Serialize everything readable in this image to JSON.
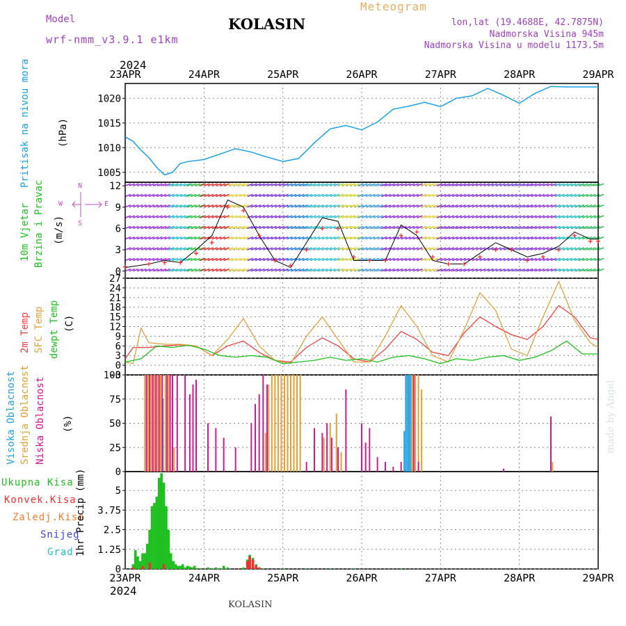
{
  "header": {
    "model_label": "Model",
    "model_name": "wrf-nmm_v3.9.1 e1km",
    "title": "KOLASIN",
    "meteogram": "Meteogram",
    "lonlat": "lon,lat (19.4688E, 42.7875N)",
    "elevation": "Nadmorska Visina 945m",
    "model_elevation": "Nadmorska Visina u modelu 1173.5m",
    "year_top": "2024",
    "year_bottom": "2024"
  },
  "footer": {
    "station": "KOLASIN",
    "credit": "made by Angel"
  },
  "colors": {
    "pressure": "#1aa0e8",
    "wind_speed": "#000000",
    "gust": "#ff2020",
    "t2m": "#f04040",
    "sfc": "#e0a040",
    "dew": "#20c020",
    "high_cloud": "#20a0e0",
    "mid_cloud": "#e0a030",
    "low_cloud": "#d01890",
    "total_precip": "#20c020",
    "conv_precip": "#f03030",
    "frozen": "#f08030",
    "snow": "#4040e0",
    "hail": "#20c0c0",
    "wind_label_1": "#20c020",
    "wind_dir_label": "#c050c0"
  },
  "x_ticks": [
    "23APR",
    "24APR",
    "25APR",
    "26APR",
    "27APR",
    "28APR",
    "29APR"
  ],
  "panels": {
    "pressure": {
      "label": "Pritisak na nivou mora",
      "unit": "(hPa)"
    },
    "wind": {
      "label1": "10m Vjetar",
      "label2": "Brzina i Pravac",
      "unit": "(m/s)",
      "compass_n": "N",
      "compass_s": "S",
      "compass_w": "W",
      "compass_e": "E"
    },
    "temp": {
      "label_t2": "2m Temp",
      "label_sfc": "SFC Temp",
      "label_dew": "dewpt Temp",
      "unit": "(C)"
    },
    "cloud": {
      "label_high": "Visoka Oblacnost",
      "label_mid": "Srednja Oblacnost",
      "label_low": "Niska Oblacnost",
      "unit": "(%)"
    },
    "precip": {
      "unit": "1hr Precip (mm)",
      "legend": [
        "Ukupna Kisa",
        "Konvek.Kisa",
        "Zaledj.Kisa",
        "Snijeg",
        "Grad"
      ]
    }
  },
  "chart_data": [
    {
      "type": "line",
      "name": "pressure",
      "ylim": [
        1003,
        1023
      ],
      "yticks": [
        1005,
        1010,
        1015,
        1020
      ],
      "xlim": [
        0,
        6
      ],
      "x": [
        0,
        0.1,
        0.2,
        0.3,
        0.4,
        0.5,
        0.6,
        0.7,
        0.8,
        1.0,
        1.2,
        1.4,
        1.6,
        1.8,
        2.0,
        2.2,
        2.4,
        2.6,
        2.8,
        3.0,
        3.2,
        3.4,
        3.6,
        3.8,
        4.0,
        4.2,
        4.4,
        4.6,
        4.8,
        5.0,
        5.2,
        5.4,
        5.6,
        5.8,
        6.0
      ],
      "values": [
        1012.2,
        1011.3,
        1009.5,
        1008.0,
        1006.0,
        1004.5,
        1005.0,
        1006.8,
        1007.2,
        1007.6,
        1008.7,
        1009.8,
        1009.1,
        1008.1,
        1007.2,
        1007.8,
        1011.0,
        1013.8,
        1014.5,
        1013.6,
        1015.2,
        1017.8,
        1018.4,
        1019.2,
        1018.3,
        1020.0,
        1020.5,
        1022.0,
        1020.6,
        1019.0,
        1021.0,
        1022.4,
        1022.3,
        1022.3,
        1022.3
      ]
    },
    {
      "type": "line",
      "name": "wind",
      "ylim": [
        -1,
        12.5
      ],
      "yticks": [
        0,
        3,
        6,
        9,
        12
      ],
      "xlim": [
        0,
        6
      ],
      "series": [
        {
          "name": "speed",
          "x": [
            0,
            0.3,
            0.5,
            0.7,
            0.9,
            1.1,
            1.3,
            1.5,
            1.7,
            1.9,
            2.1,
            2.3,
            2.5,
            2.7,
            2.9,
            3.1,
            3.3,
            3.5,
            3.7,
            3.9,
            4.1,
            4.3,
            4.5,
            4.7,
            4.9,
            5.1,
            5.3,
            5.5,
            5.7,
            5.9,
            6.0
          ],
          "values": [
            0.5,
            1,
            1.5,
            1.2,
            3,
            5,
            10,
            9,
            5,
            1.5,
            0.5,
            4,
            7.5,
            7,
            1.5,
            1.5,
            1.5,
            6.5,
            5,
            1.5,
            1,
            1,
            2.5,
            4,
            3,
            2,
            2.5,
            3.5,
            5.5,
            4.5,
            4.5
          ]
        },
        {
          "name": "gust",
          "x": [
            0,
            0.3,
            0.5,
            0.7,
            0.9,
            1.1,
            1.3,
            1.5,
            1.7,
            1.9,
            2.1,
            2.3,
            2.5,
            2.7,
            2.9,
            3.1,
            3.3,
            3.5,
            3.7,
            3.9,
            4.1,
            4.3,
            4.5,
            4.7,
            4.9,
            5.1,
            5.3,
            5.5,
            5.7,
            5.9,
            6.0
          ],
          "values": [
            0.6,
            1,
            1.2,
            1.2,
            2.5,
            4,
            9,
            8.5,
            5,
            1.5,
            0.8,
            3,
            6,
            6,
            2,
            1.5,
            1.5,
            5,
            5.5,
            2,
            1,
            1,
            2,
            3,
            3,
            1.5,
            2,
            3,
            5,
            4.2,
            4.2
          ]
        }
      ]
    },
    {
      "type": "line",
      "name": "temperature",
      "ylim": [
        -3,
        27
      ],
      "yticks": [
        -3,
        0,
        3,
        6,
        9,
        12,
        15,
        18,
        21,
        24,
        27
      ],
      "xlim": [
        0,
        6
      ],
      "series": [
        {
          "name": "t2m",
          "x": [
            0,
            0.1,
            0.3,
            0.5,
            0.7,
            0.9,
            1.1,
            1.3,
            1.5,
            1.7,
            1.9,
            2.1,
            2.3,
            2.5,
            2.7,
            2.9,
            3.1,
            3.3,
            3.5,
            3.7,
            3.9,
            4.1,
            4.3,
            4.5,
            4.7,
            4.9,
            5.1,
            5.3,
            5.5,
            5.7,
            5.9,
            6.0
          ],
          "values": [
            2,
            5.5,
            5.5,
            6,
            6.3,
            6,
            3,
            6,
            7.5,
            4,
            1.5,
            1,
            5.5,
            8.5,
            6,
            2,
            1,
            5,
            10.5,
            8,
            4,
            3,
            10,
            15,
            12,
            9.5,
            8,
            12,
            18.5,
            15,
            8.5,
            8
          ]
        },
        {
          "name": "sfc",
          "x": [
            0,
            0.1,
            0.2,
            0.3,
            0.5,
            0.7,
            0.9,
            1.1,
            1.3,
            1.5,
            1.7,
            1.9,
            2.1,
            2.3,
            2.5,
            2.7,
            2.9,
            3.1,
            3.3,
            3.5,
            3.7,
            3.9,
            4.1,
            4.3,
            4.5,
            4.7,
            4.9,
            5.1,
            5.3,
            5.5,
            5.7,
            5.9,
            6.0
          ],
          "values": [
            1,
            0.5,
            11.5,
            7,
            6.5,
            6.5,
            6,
            3,
            8,
            14.5,
            6,
            1.5,
            0.5,
            9,
            15,
            8,
            1,
            1,
            9,
            18.5,
            12,
            3,
            1,
            11,
            22.5,
            17,
            5,
            3,
            15,
            26,
            14,
            7,
            5.5
          ]
        },
        {
          "name": "dew",
          "x": [
            0,
            0.2,
            0.4,
            0.6,
            0.8,
            1.0,
            1.2,
            1.4,
            1.6,
            1.8,
            2.0,
            2.2,
            2.4,
            2.6,
            2.8,
            3.0,
            3.2,
            3.4,
            3.6,
            3.8,
            4.0,
            4.2,
            4.4,
            4.6,
            4.8,
            5.0,
            5.2,
            5.4,
            5.6,
            5.8,
            6.0
          ],
          "values": [
            1,
            2,
            6,
            5.5,
            6.2,
            5,
            3,
            2.5,
            3,
            2.5,
            0.5,
            1,
            1.5,
            2.5,
            1.5,
            2,
            1,
            2.5,
            3,
            2,
            0.5,
            2,
            1.5,
            2.5,
            3,
            1.5,
            2.5,
            4.5,
            7.5,
            3.5,
            3.5
          ]
        }
      ]
    },
    {
      "type": "bar",
      "name": "cloud_cover",
      "ylim": [
        0,
        100
      ],
      "yticks": [
        0,
        25,
        50,
        75,
        100
      ],
      "xlim": [
        0,
        6
      ],
      "series": [
        {
          "name": "high",
          "x": [
            0.48,
            3.54,
            3.56,
            3.58,
            3.6,
            3.62
          ],
          "values": [
            75,
            42,
            100,
            100,
            100,
            100
          ]
        },
        {
          "name": "mid",
          "x": [
            0.25,
            0.29,
            0.33,
            0.37,
            0.41,
            0.45,
            0.51,
            0.55,
            0.62,
            0.9,
            1.78,
            1.82,
            1.86,
            1.9,
            1.94,
            1.98,
            2.02,
            2.06,
            2.1,
            2.14,
            2.18,
            2.22,
            2.52,
            2.6,
            2.68,
            2.74,
            3.64,
            3.68,
            3.72,
            3.76,
            5.42
          ],
          "values": [
            100,
            100,
            100,
            100,
            100,
            100,
            100,
            100,
            25,
            25,
            40,
            90,
            100,
            100,
            100,
            100,
            100,
            100,
            100,
            100,
            100,
            100,
            35,
            50,
            60,
            20,
            100,
            100,
            100,
            85,
            10
          ]
        },
        {
          "name": "low",
          "x": [
            0.27,
            0.31,
            0.35,
            0.39,
            0.43,
            0.47,
            0.53,
            0.57,
            0.6,
            0.66,
            0.76,
            0.82,
            0.86,
            0.9,
            1.05,
            1.15,
            1.25,
            1.4,
            1.6,
            1.65,
            1.7,
            1.75,
            1.8,
            2.3,
            2.4,
            2.5,
            2.56,
            2.62,
            2.7,
            2.8,
            3.0,
            3.05,
            3.1,
            3.2,
            3.3,
            3.4,
            3.5,
            3.66,
            3.72,
            4.8,
            5.4
          ],
          "values": [
            100,
            100,
            100,
            100,
            100,
            100,
            100,
            100,
            100,
            100,
            100,
            80,
            90,
            95,
            50,
            45,
            35,
            25,
            50,
            70,
            80,
            100,
            90,
            10,
            45,
            40,
            50,
            35,
            25,
            85,
            50,
            30,
            45,
            15,
            10,
            5,
            10,
            100,
            10,
            3,
            57
          ]
        }
      ]
    },
    {
      "type": "bar",
      "name": "precipitation",
      "ylim": [
        0,
        6.2
      ],
      "yticks": [
        0,
        1.25,
        2.5,
        3.75,
        5
      ],
      "xlim": [
        0,
        6
      ],
      "series": [
        {
          "name": "total",
          "x": [
            0.1,
            0.13,
            0.16,
            0.19,
            0.22,
            0.25,
            0.28,
            0.31,
            0.34,
            0.37,
            0.4,
            0.43,
            0.46,
            0.49,
            0.52,
            0.55,
            0.58,
            0.61,
            0.64,
            0.67,
            0.7,
            0.73,
            0.76,
            0.79,
            0.82,
            0.85,
            0.88,
            0.95,
            1.05,
            1.1,
            1.15,
            1.2,
            1.25,
            1.3,
            1.5,
            1.55,
            1.58,
            1.62,
            1.66,
            1.7,
            1.74,
            2.0,
            2.3,
            2.6,
            2.9,
            3.5
          ],
          "values": [
            0.3,
            1.2,
            0.8,
            0.5,
            1,
            1,
            1.6,
            2.5,
            4,
            4.2,
            4.6,
            5.8,
            6.1,
            5.5,
            4,
            2.5,
            1,
            0.5,
            0.3,
            0.2,
            0.2,
            0.3,
            0.1,
            0.2,
            0.15,
            0.1,
            0.2,
            0.05,
            0.1,
            0.05,
            0.1,
            0.05,
            0.2,
            0.1,
            0.1,
            0.6,
            0.9,
            0.7,
            0.3,
            0.1,
            0.05,
            0.05,
            0.05,
            0.05,
            0.05,
            0.05
          ]
        },
        {
          "name": "convective",
          "x": [
            0.1,
            0.22,
            0.31,
            0.49,
            1.55,
            1.58,
            1.62,
            1.66,
            1.7
          ],
          "values": [
            0.1,
            0.2,
            0.4,
            0.3,
            0.5,
            0.8,
            0.6,
            0.2,
            0.1
          ]
        }
      ]
    }
  ]
}
